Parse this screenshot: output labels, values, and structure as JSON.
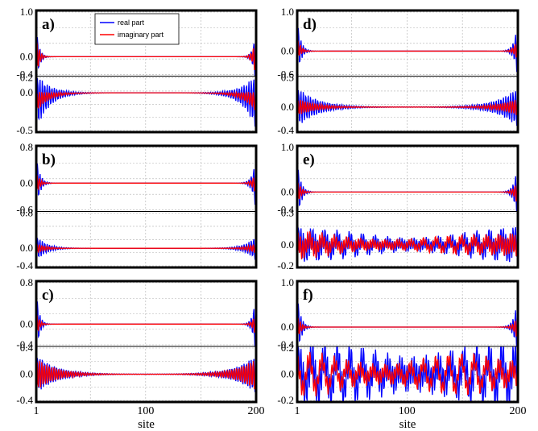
{
  "figure": {
    "xlabel": "site",
    "colors": {
      "real": "#0000ff",
      "imag": "#ff0000",
      "grid": "#b0b0b0"
    },
    "legend": {
      "placement": "top-left",
      "entries": [
        "real part",
        "imaginary part"
      ]
    }
  },
  "chart_data": [
    {
      "label": "a)",
      "type": "line",
      "x_range": [
        1,
        200
      ],
      "series": [
        {
          "name": "real part"
        },
        {
          "name": "imaginary part"
        }
      ],
      "upper": {
        "ylim": [
          -0.4,
          1.0
        ],
        "yticks": [
          "1.0",
          "0.0",
          "-0.4"
        ],
        "edge_amp_real": 0.75,
        "edge_amp_imag": 0.55,
        "decay_sites": 2.5,
        "bulk_amp": 0.0,
        "offset": 0.0
      },
      "lower": {
        "ylim": [
          -0.5,
          0.2
        ],
        "yticks": [
          "0.2",
          "0.0",
          "-0.5"
        ],
        "edge_amp_real": 0.38,
        "edge_amp_imag": 0.14,
        "decay_sites": 12,
        "bulk_amp": 0.0,
        "offset": -0.12
      }
    },
    {
      "label": "d)",
      "type": "line",
      "x_range": [
        1,
        200
      ],
      "series": [
        {
          "name": "real part"
        },
        {
          "name": "imaginary part"
        }
      ],
      "upper": {
        "ylim": [
          -0.6,
          1.0
        ],
        "yticks": [
          "1.0",
          "0.0",
          "-0.6"
        ],
        "edge_amp_real": 0.85,
        "edge_amp_imag": 0.35,
        "decay_sites": 3,
        "bulk_amp": 0.0,
        "offset": 0.08
      },
      "lower": {
        "ylim": [
          -0.4,
          0.5
        ],
        "yticks": [
          "0.5",
          "0.0",
          "-0.4"
        ],
        "edge_amp_real": 0.35,
        "edge_amp_imag": 0.15,
        "decay_sites": 18,
        "bulk_amp": 0.0,
        "offset": 0.0
      }
    },
    {
      "label": "b)",
      "type": "line",
      "x_range": [
        1,
        200
      ],
      "series": [
        {
          "name": "real part"
        },
        {
          "name": "imaginary part"
        }
      ],
      "upper": {
        "ylim": [
          -0.6,
          0.8
        ],
        "yticks": [
          "0.8",
          "0.0",
          "-0.6"
        ],
        "edge_amp_real": 0.7,
        "edge_amp_imag": 0.3,
        "decay_sites": 3,
        "bulk_amp": 0.0,
        "offset": 0.0
      },
      "lower": {
        "ylim": [
          -0.4,
          0.8
        ],
        "yticks": [
          "0.8",
          "0.0",
          "-0.4"
        ],
        "edge_amp_real": 0.3,
        "edge_amp_imag": 0.12,
        "decay_sites": 9,
        "bulk_amp": 0.0,
        "offset": 0.0
      }
    },
    {
      "label": "e)",
      "type": "line",
      "x_range": [
        1,
        200
      ],
      "series": [
        {
          "name": "real part"
        },
        {
          "name": "imaginary part"
        }
      ],
      "upper": {
        "ylim": [
          -0.4,
          1.0
        ],
        "yticks": [
          "1.0",
          "0.0",
          "-0.4"
        ],
        "edge_amp_real": 0.8,
        "edge_amp_imag": 0.35,
        "decay_sites": 3,
        "bulk_amp": 0.0,
        "offset": 0.0
      },
      "lower": {
        "ylim": [
          -0.2,
          0.3
        ],
        "yticks": [
          "0.3",
          "0.0",
          "-0.2"
        ],
        "edge_amp_real": 0.14,
        "edge_amp_imag": 0.1,
        "decay_sites": 60,
        "bulk_amp": 0.04,
        "offset": 0.0
      }
    },
    {
      "label": "c)",
      "type": "line",
      "x_range": [
        1,
        200
      ],
      "series": [
        {
          "name": "real part"
        },
        {
          "name": "imaginary part"
        }
      ],
      "upper": {
        "ylim": [
          -0.4,
          0.8
        ],
        "yticks": [
          "0.8",
          "0.0",
          "-0.4"
        ],
        "edge_amp_real": 0.75,
        "edge_amp_imag": 0.3,
        "decay_sites": 2.5,
        "bulk_amp": 0.0,
        "offset": 0.0
      },
      "lower": {
        "ylim": [
          -0.4,
          0.4
        ],
        "yticks": [
          "0.4",
          "0.0",
          "-0.4"
        ],
        "edge_amp_real": 0.3,
        "edge_amp_imag": 0.25,
        "decay_sites": 18,
        "bulk_amp": 0.0,
        "offset": 0.0
      }
    },
    {
      "label": "f)",
      "type": "line",
      "x_range": [
        1,
        200
      ],
      "series": [
        {
          "name": "real part"
        },
        {
          "name": "imaginary part"
        }
      ],
      "upper": {
        "ylim": [
          -0.4,
          1.0
        ],
        "yticks": [
          "1.0",
          "0.0",
          "-0.4"
        ],
        "edge_amp_real": 0.85,
        "edge_amp_imag": 0.35,
        "decay_sites": 3,
        "bulk_amp": 0.0,
        "offset": 0.0
      },
      "lower": {
        "ylim": [
          -0.2,
          0.2
        ],
        "yticks": [
          "0.2",
          "0.0",
          "-0.2"
        ],
        "edge_amp_real": 0.12,
        "edge_amp_imag": 0.06,
        "decay_sites": 120,
        "bulk_amp": 0.09,
        "offset": 0.0
      }
    }
  ]
}
